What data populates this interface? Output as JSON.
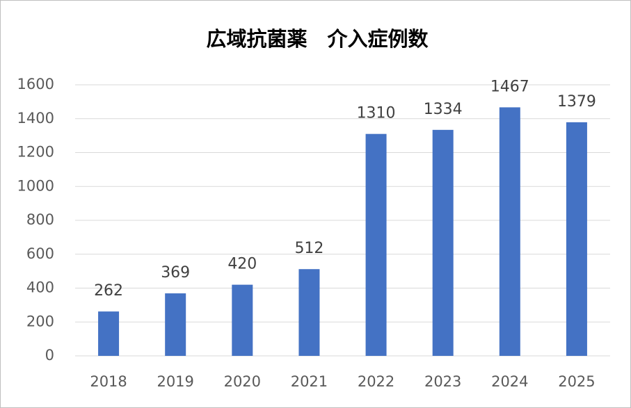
{
  "chart_data": {
    "type": "bar",
    "title": "広域抗菌薬　介入症例数",
    "categories": [
      "2018",
      "2019",
      "2020",
      "2021",
      "2022",
      "2023",
      "2024",
      "2025"
    ],
    "values": [
      262,
      369,
      420,
      512,
      1310,
      1334,
      1467,
      1379
    ],
    "color": "#4472c4",
    "ylim": [
      0,
      1600
    ],
    "yticks": [
      0,
      200,
      400,
      600,
      800,
      1000,
      1200,
      1400,
      1600
    ],
    "grid": true
  }
}
